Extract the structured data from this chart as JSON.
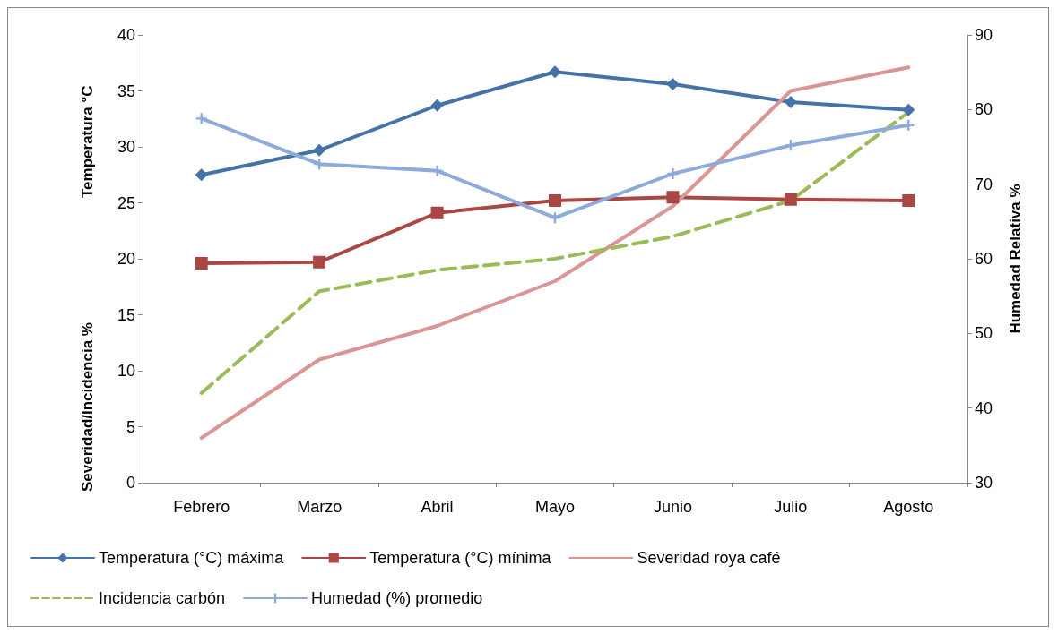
{
  "chart_data": {
    "type": "line",
    "ylabel": "Temperatura °C",
    "y2label": "Humedad Relativa %",
    "annotations": [
      "Severidad/Incidencia %"
    ],
    "categories": [
      "Febrero",
      "Marzo",
      "Abril",
      "Mayo",
      "Junio",
      "Julio",
      "Agosto"
    ],
    "ylim": [
      0,
      40
    ],
    "yticks": [
      0,
      5,
      10,
      15,
      20,
      25,
      30,
      35,
      40
    ],
    "y2lim": [
      30,
      90
    ],
    "y2ticks": [
      30,
      40,
      50,
      60,
      70,
      80,
      90
    ],
    "grid": false,
    "legend": "bottom",
    "series": [
      {
        "name": "Temperatura (°C) máxima",
        "color": "#4572a7",
        "marker": "diamond",
        "line_style": "solid",
        "values": [
          27.5,
          29.7,
          33.7,
          36.7,
          35.6,
          34.0,
          33.3
        ]
      },
      {
        "name": "Temperatura (°C) mínima",
        "color": "#aa4643",
        "marker": "square",
        "line_style": "solid",
        "values": [
          19.6,
          19.7,
          24.1,
          25.2,
          25.5,
          25.3,
          25.2
        ]
      },
      {
        "name": "Severidad roya café",
        "color": "#d99694",
        "marker": "none",
        "line_style": "solid",
        "values": [
          4,
          11,
          14,
          18,
          24.7,
          35,
          37.1
        ]
      },
      {
        "name": "Incidencia carbón",
        "color": "#9bbb59",
        "marker": "none",
        "line_style": "dashed",
        "values": [
          8,
          17.1,
          19,
          20,
          22,
          25.2,
          33.1
        ]
      },
      {
        "name": "Humedad (%) promedio",
        "color": "#8eaadb",
        "marker": "cross",
        "line_style": "solid",
        "axis": "y2",
        "values": [
          78.8,
          72.7,
          71.8,
          65.5,
          71.4,
          75.2,
          77.9
        ]
      }
    ]
  }
}
